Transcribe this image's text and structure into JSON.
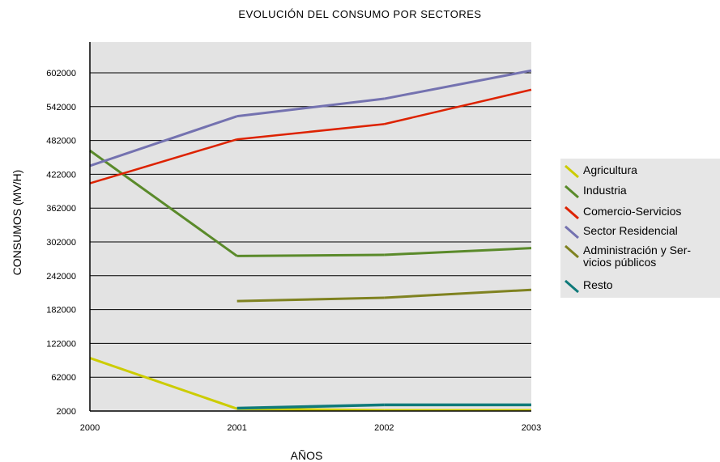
{
  "chart_data": {
    "type": "line",
    "title": "EVOLUCIÓN DEL CONSUMO POR SECTORES",
    "xlabel": "AÑOS",
    "ylabel": "CONSUMOS (MV/H)",
    "categories": [
      "2000",
      "2001",
      "2002",
      "2003"
    ],
    "y_ticks": [
      2000,
      62000,
      122000,
      182000,
      242000,
      302000,
      362000,
      422000,
      482000,
      542000,
      602000
    ],
    "ylim": [
      2000,
      662000
    ],
    "grid": true,
    "plot_background": "#e3e3e3",
    "legend_position": "right",
    "series": [
      {
        "name": "Agricultura",
        "color": "#cccc00",
        "values": [
          96000,
          6000,
          3500,
          3500
        ]
      },
      {
        "name": "Industria",
        "color": "#5a8a2a",
        "values": [
          464000,
          277000,
          279000,
          291000
        ]
      },
      {
        "name": "Comercio-Servicios",
        "color": "#dd2200",
        "values": [
          406000,
          484000,
          511000,
          572000
        ]
      },
      {
        "name": "Sector Residencial",
        "color": "#7472b0",
        "values": [
          437000,
          525000,
          556000,
          606000
        ]
      },
      {
        "name": "Administración y Servicios públicos",
        "color": "#7f8220",
        "values": [
          null,
          197000,
          203000,
          217000
        ]
      },
      {
        "name": "Resto",
        "color": "#0f7a7a",
        "values": [
          null,
          7000,
          13000,
          13000
        ]
      }
    ]
  },
  "legend": {
    "items": [
      {
        "label": "Agricultura",
        "color": "#cccc00"
      },
      {
        "label": "Industria",
        "color": "#5a8a2a"
      },
      {
        "label": "Comercio-Servicios",
        "color": "#dd2200"
      },
      {
        "label": "Sector Residencial",
        "color": "#7472b0"
      },
      {
        "label": "Administración y Ser-\nvicios públicos",
        "color": "#7f8220"
      },
      {
        "label": "Resto",
        "color": "#0f7a7a"
      }
    ]
  }
}
